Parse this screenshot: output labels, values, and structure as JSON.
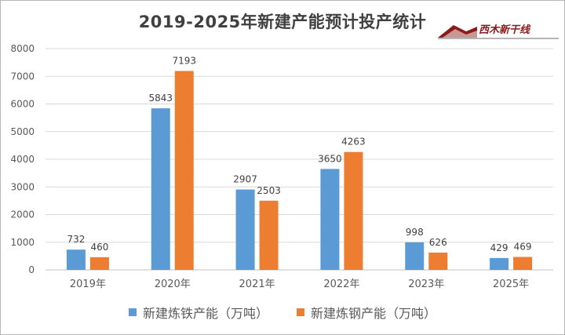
{
  "logo": {
    "text": "西木新干线"
  },
  "chart_data": {
    "type": "bar",
    "title": "2019-2025年新建产能预计投产统计",
    "categories": [
      "2019年",
      "2020年",
      "2021年",
      "2022年",
      "2023年",
      "2025年"
    ],
    "series": [
      {
        "name": "新建炼铁产能（万吨）",
        "color": "#5b9bd5",
        "values": [
          732,
          5843,
          2907,
          3650,
          998,
          429
        ]
      },
      {
        "name": "新建炼钢产能（万吨）",
        "color": "#ed7d31",
        "values": [
          460,
          7193,
          2503,
          4263,
          626,
          469
        ]
      }
    ],
    "ylim": [
      0,
      8000
    ],
    "yticks": [
      0,
      1000,
      2000,
      3000,
      4000,
      5000,
      6000,
      7000,
      8000
    ],
    "grid": true,
    "legend_position": "bottom",
    "data_labels": true
  }
}
